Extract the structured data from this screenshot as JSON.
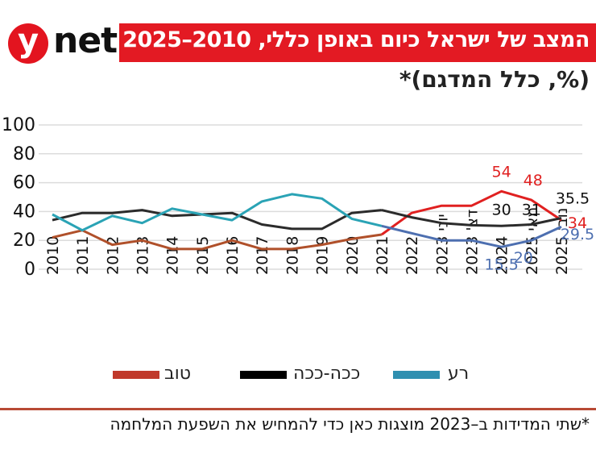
{
  "logo": {
    "letter": "y",
    "text": "net"
  },
  "header": {
    "title": "המצב של ישראל כיום באופן כללי, 2010–2025",
    "subtitle": "(%, כלל המדגם)*"
  },
  "footnote": "*שתי המדידות ב–2023 מוצגות כאן כדי להמחיש את השפעת המלחמה",
  "colors": {
    "title_bar": "#e31a23",
    "good": "#e02020",
    "good_early": "#b0502a",
    "soso": "#2b2b2b",
    "bad": "#4d6fb0",
    "bad_early": "#2aa3b5",
    "divider": "#b84a35",
    "grid": "#dcdcdc"
  },
  "chart_data": {
    "type": "line",
    "title": "המצב של ישראל כיום באופן כללי, 2010–2025",
    "subtitle": "(%, כלל המדגם)*",
    "xlabel": "",
    "ylabel": "",
    "ylim": [
      0,
      100
    ],
    "yticks": [
      "0",
      "20",
      "40",
      "60",
      "80",
      "100"
    ],
    "ytick_values": [
      0,
      20,
      40,
      60,
      80,
      100
    ],
    "grid": true,
    "legend_position": "bottom",
    "categories": [
      "2010",
      "2011",
      "2012",
      "2013",
      "2014",
      "2015",
      "2016",
      "2017",
      "2018",
      "2019",
      "2020",
      "2021",
      "2022",
      "יוני 2023",
      "דצ' 2023",
      "2024",
      "מאי 2025",
      "נוב' 2025"
    ],
    "series": [
      {
        "name": "טוב",
        "key": "good",
        "values": [
          22,
          27,
          17,
          20,
          14,
          14,
          20,
          14,
          14,
          17,
          21,
          24,
          39,
          44,
          44,
          54,
          48,
          34
        ],
        "labels": {
          "15": "54",
          "16": "48",
          "17": "34"
        }
      },
      {
        "name": "ככה-ככה",
        "key": "soso",
        "values": [
          34,
          39,
          39,
          41,
          37,
          38,
          39,
          31,
          28,
          28,
          39,
          41,
          36,
          32,
          30.5,
          30,
          31,
          35.5
        ],
        "labels": {
          "15": "30",
          "16": "31",
          "17": "35.5"
        }
      },
      {
        "name": "רע",
        "key": "bad",
        "values": [
          38,
          27,
          37,
          32,
          42,
          38,
          34,
          47,
          52,
          49,
          35,
          30,
          25,
          20,
          20,
          15.5,
          20,
          29.5
        ],
        "labels": {
          "15": "15.5",
          "16": "20",
          "17": "29.5"
        }
      }
    ]
  }
}
